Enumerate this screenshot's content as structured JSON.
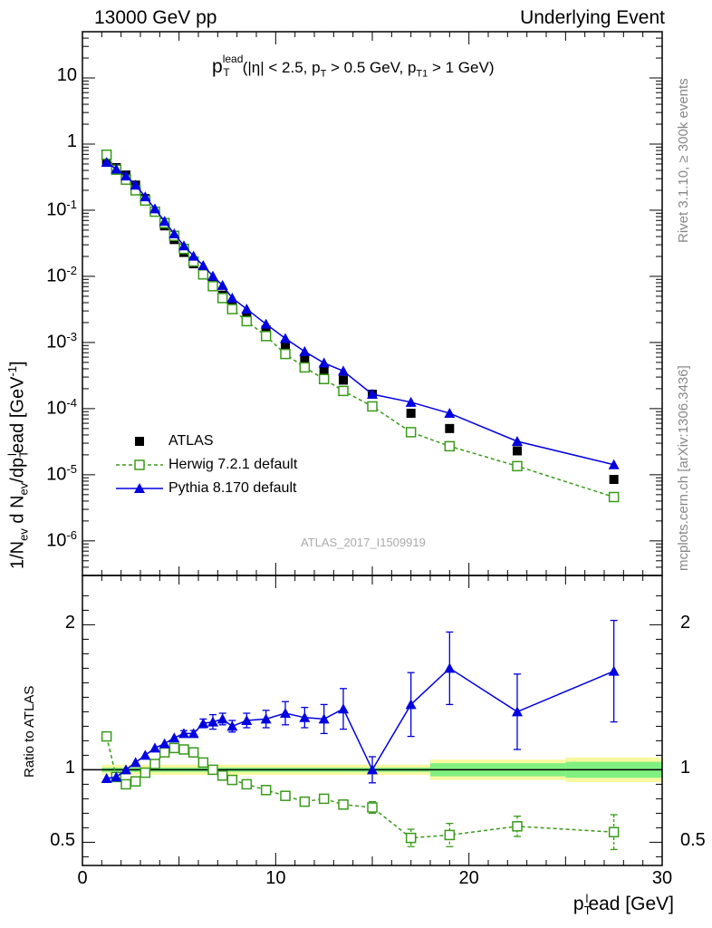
{
  "header": {
    "left": "13000 GeV pp",
    "right": "Underlying Event"
  },
  "side_labels": {
    "rivet": "Rivet 3.1.10, ≥ 300k events",
    "mcplots": "mcplots.cern.ch [arXiv:1306.3436]"
  },
  "watermark": "ATLAS_2017_I1509919",
  "title_parts": {
    "p": "p",
    "sup": "lead",
    "sub": "T",
    "cut1": "(|η| < 2.5, p",
    "cut1_sub": "T",
    "cut2": " > 0.5 GeV, p",
    "cut2_sub": "T1",
    "cut3": " > 1 GeV)"
  },
  "legend": {
    "atlas": "ATLAS",
    "herwig": "Herwig 7.2.1 default",
    "pythia": "Pythia 8.170 default"
  },
  "colors": {
    "atlas": "#000000",
    "herwig": "#3a9a1a",
    "pythia": "#0000e0",
    "band_inner": "#80f080",
    "band_outer": "#f8f8a0"
  },
  "chart_data": [
    {
      "type": "scatter",
      "panel": "main",
      "yscale": "log",
      "xlim": [
        0,
        30
      ],
      "ylim": [
        3e-07,
        50
      ],
      "ylabel_parts": {
        "a": "1/N",
        "b": "ev",
        "c": " d N",
        "d": "ev",
        "e": "/dp",
        "f": "T",
        "g": "l",
        "h": "ead [GeV",
        "i": "-1",
        "j": "]"
      },
      "yticks": [
        {
          "v": 1e-06,
          "base": "10",
          "exp": "-6"
        },
        {
          "v": 1e-05,
          "base": "10",
          "exp": "-5"
        },
        {
          "v": 0.0001,
          "base": "10",
          "exp": "-4"
        },
        {
          "v": 0.001,
          "base": "10",
          "exp": "-3"
        },
        {
          "v": 0.01,
          "base": "10",
          "exp": "-2"
        },
        {
          "v": 0.1,
          "base": "10",
          "exp": "-1"
        },
        {
          "v": 1,
          "base": "1",
          "exp": ""
        },
        {
          "v": 10,
          "base": "10",
          "exp": ""
        }
      ],
      "series": [
        {
          "name": "ATLAS",
          "marker": "square",
          "x": [
            1.25,
            1.75,
            2.25,
            2.75,
            3.25,
            3.75,
            4.25,
            4.75,
            5.25,
            5.75,
            6.25,
            6.75,
            7.25,
            7.75,
            8.5,
            9.5,
            10.5,
            11.5,
            12.5,
            13.5,
            15,
            17,
            19,
            22.5,
            27.5
          ],
          "y": [
            0.56,
            0.44,
            0.34,
            0.24,
            0.15,
            0.095,
            0.058,
            0.036,
            0.023,
            0.0155,
            0.0108,
            0.0075,
            0.0052,
            0.0036,
            0.0024,
            0.00155,
            0.00092,
            0.00058,
            0.00039,
            0.00027,
            0.000165,
            8.5e-05,
            5e-05,
            2.3e-05,
            8.5e-06
          ]
        },
        {
          "name": "Herwig 7.2.1 default",
          "marker": "open-square",
          "dashed": true,
          "x": [
            1.25,
            1.75,
            2.25,
            2.75,
            3.25,
            3.75,
            4.25,
            4.75,
            5.25,
            5.75,
            6.25,
            6.75,
            7.25,
            7.75,
            8.5,
            9.5,
            10.5,
            11.5,
            12.5,
            13.5,
            15,
            17,
            19,
            22.5,
            27.5
          ],
          "y": [
            0.69,
            0.41,
            0.29,
            0.2,
            0.14,
            0.095,
            0.064,
            0.041,
            0.026,
            0.0168,
            0.0107,
            0.0071,
            0.0047,
            0.0032,
            0.0021,
            0.00125,
            0.00067,
            0.00042,
            0.00028,
            0.000185,
            0.000108,
            4.4e-05,
            2.7e-05,
            1.35e-05,
            4.6e-06
          ]
        },
        {
          "name": "Pythia 8.170 default",
          "marker": "triangle",
          "x": [
            1.25,
            1.75,
            2.25,
            2.75,
            3.25,
            3.75,
            4.25,
            4.75,
            5.25,
            5.75,
            6.25,
            6.75,
            7.25,
            7.75,
            8.5,
            9.5,
            10.5,
            11.5,
            12.5,
            13.5,
            15,
            17,
            19,
            22.5,
            27.5
          ],
          "y": [
            0.53,
            0.42,
            0.33,
            0.24,
            0.16,
            0.105,
            0.068,
            0.044,
            0.029,
            0.0202,
            0.0146,
            0.0101,
            0.0073,
            0.0047,
            0.0032,
            0.0019,
            0.00115,
            0.00073,
            0.00049,
            0.00037,
            0.000165,
            0.000125,
            8.5e-05,
            3.2e-05,
            1.42e-05
          ]
        }
      ]
    },
    {
      "type": "scatter",
      "panel": "ratio",
      "xlim": [
        0,
        30
      ],
      "ylim": [
        0.34,
        2.34
      ],
      "ylabel": "Ratio to ATLAS",
      "xlabel_parts": {
        "a": "p",
        "b": "T",
        "c": "l",
        "d": "ead [GeV]"
      },
      "xticks": [
        0,
        10,
        20,
        30
      ],
      "yticks": [
        "0.5",
        "1",
        "2"
      ],
      "bands": [
        {
          "x0": 1,
          "x1": 18,
          "inner": 0.015,
          "outer": 0.035
        },
        {
          "x0": 18,
          "x1": 25,
          "inner": 0.045,
          "outer": 0.07
        },
        {
          "x0": 25,
          "x1": 30,
          "inner": 0.055,
          "outer": 0.085
        }
      ],
      "series": [
        {
          "name": "Herwig 7.2.1 default",
          "marker": "open-square",
          "dashed": true,
          "x": [
            1.25,
            1.75,
            2.25,
            2.75,
            3.25,
            3.75,
            4.25,
            4.75,
            5.25,
            5.75,
            6.25,
            6.75,
            7.25,
            7.75,
            8.5,
            9.5,
            10.5,
            11.5,
            12.5,
            13.5,
            15,
            17,
            19,
            22.5,
            27.5
          ],
          "y": [
            1.23,
            0.95,
            0.9,
            0.92,
            0.98,
            1.04,
            1.12,
            1.15,
            1.14,
            1.12,
            1.05,
            1.0,
            0.96,
            0.93,
            0.9,
            0.86,
            0.82,
            0.78,
            0.8,
            0.76,
            0.74,
            0.53,
            0.55,
            0.61,
            0.57
          ],
          "err": [
            0,
            0,
            0,
            0,
            0,
            0,
            0,
            0,
            0,
            0,
            0,
            0,
            0,
            0,
            0,
            0.01,
            0.02,
            0.03,
            0.03,
            0.03,
            0.04,
            0.06,
            0.08,
            0.07,
            0.12
          ]
        },
        {
          "name": "Pythia 8.170 default",
          "marker": "triangle",
          "x": [
            1.25,
            1.75,
            2.25,
            2.75,
            3.25,
            3.75,
            4.25,
            4.75,
            5.25,
            5.75,
            6.25,
            6.75,
            7.25,
            7.75,
            8.5,
            9.5,
            10.5,
            11.5,
            12.5,
            13.5,
            15,
            17,
            19,
            22.5,
            27.5
          ],
          "y": [
            0.94,
            0.95,
            1.0,
            1.05,
            1.1,
            1.15,
            1.18,
            1.22,
            1.25,
            1.25,
            1.32,
            1.33,
            1.35,
            1.3,
            1.34,
            1.35,
            1.39,
            1.36,
            1.35,
            1.42,
            1.0,
            1.45,
            1.7,
            1.4,
            1.68
          ],
          "err": [
            0,
            0,
            0,
            0,
            0,
            0,
            0,
            0,
            0.02,
            0.02,
            0.03,
            0.05,
            0.04,
            0.04,
            0.05,
            0.06,
            0.08,
            0.07,
            0.1,
            0.14,
            0.09,
            0.22,
            0.25,
            0.26,
            0.35
          ]
        }
      ]
    }
  ]
}
